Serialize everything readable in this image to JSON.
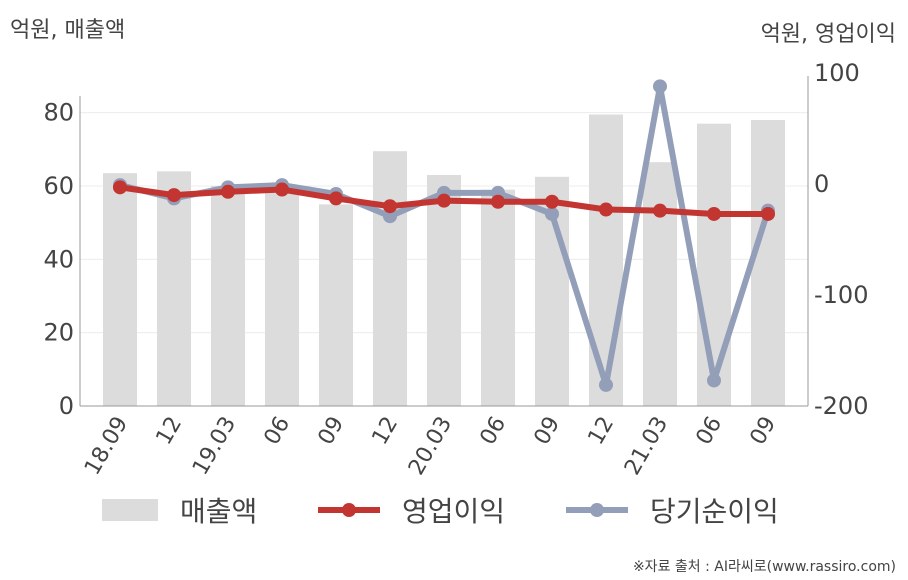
{
  "units": {
    "left": "억원, 매출액",
    "right": "억원, 영업이익"
  },
  "legend": {
    "sales": "매출액",
    "operating": "영업이익",
    "net": "당기순이익"
  },
  "source": "※자료 출처 : AI라씨로(www.rassiro.com)",
  "colors": {
    "bar": "#dcdcdc",
    "operating": "#c23531",
    "net": "#939eb8",
    "axis": "#999999",
    "grid": "#ececec",
    "text": "#444444"
  },
  "chart_data": {
    "type": "bar+line",
    "categories": [
      "18.09",
      "12",
      "19.03",
      "06",
      "09",
      "12",
      "20.03",
      "06",
      "09",
      "12",
      "21.03",
      "06",
      "09"
    ],
    "y_left": {
      "min": 0,
      "max": 90,
      "ticks": [
        0,
        20,
        40,
        60,
        80
      ]
    },
    "y_right": {
      "min": -200,
      "max": 100,
      "ticks": [
        -200,
        -100,
        0,
        100
      ]
    },
    "series": [
      {
        "name": "매출액",
        "kind": "bar",
        "axis": "left",
        "values": [
          63.5,
          64,
          60,
          60,
          55,
          69.5,
          63,
          59,
          62.5,
          79.5,
          66.5,
          77,
          78
        ]
      },
      {
        "name": "영업이익",
        "kind": "line",
        "axis": "right",
        "values": [
          -3,
          -10,
          -7,
          -5,
          -13,
          -20,
          -15,
          -16,
          -16,
          -23,
          -24,
          -27,
          -27
        ]
      },
      {
        "name": "당기순이익",
        "kind": "line",
        "axis": "right",
        "values": [
          -1,
          -13,
          -3,
          -1,
          -9,
          -29,
          -8,
          -8,
          -27,
          -181,
          88,
          -177,
          -24
        ]
      }
    ]
  }
}
